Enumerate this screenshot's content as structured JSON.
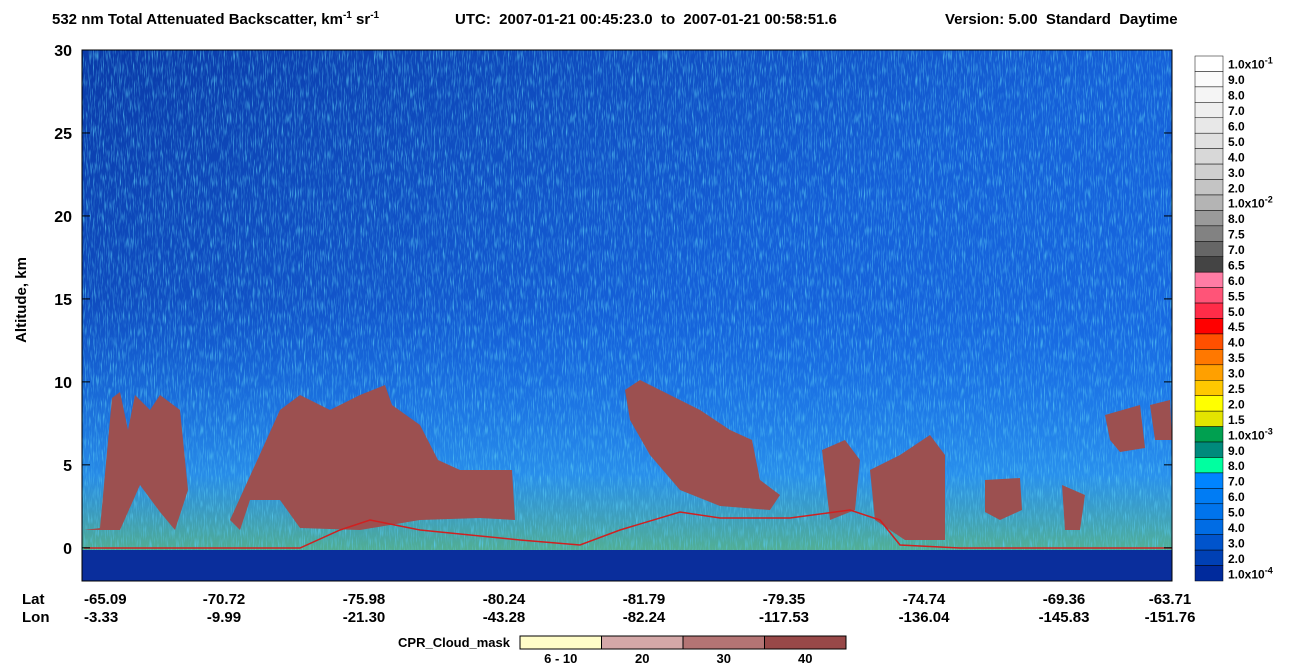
{
  "chart_data": {
    "type": "curtain",
    "title": {
      "text": "532 nm Total Attenuated Backscatter, km",
      "sup1": "-1",
      "text2": " sr",
      "sup2": "-1",
      "utc": "UTC:  2007-01-21 00:45:23.0  to  2007-01-21 00:58:51.6",
      "version": "Version: 5.00  Standard  Daytime"
    },
    "y_label": "Altitude, km",
    "ylim": [
      -2,
      30
    ],
    "yticks": [
      0,
      5,
      10,
      15,
      20,
      25,
      30
    ],
    "x_rows": [
      {
        "name": "Lat",
        "labels": [
          "-65.09",
          "-70.72",
          "-75.98",
          "-80.24",
          "-81.79",
          "-79.35",
          "-74.74",
          "-69.36",
          "-63.71"
        ]
      },
      {
        "name": "Lon",
        "labels": [
          "-3.33",
          "-9.99",
          "-21.30",
          "-43.28",
          "-82.24",
          "-117.53",
          "-136.04",
          "-145.83",
          "-151.76"
        ]
      }
    ],
    "colorbar": [
      {
        "label": "1.0x10",
        "sup": "-1",
        "color": "#ffffff"
      },
      {
        "label": "9.0",
        "color": "#fbfbfb"
      },
      {
        "label": "8.0",
        "color": "#f5f5f5"
      },
      {
        "label": "7.0",
        "color": "#efefef"
      },
      {
        "label": "6.0",
        "color": "#e8e8e8"
      },
      {
        "label": "5.0",
        "color": "#e0e0e0"
      },
      {
        "label": "4.0",
        "color": "#d8d8d8"
      },
      {
        "label": "3.0",
        "color": "#cfcfcf"
      },
      {
        "label": "2.0",
        "color": "#c4c4c4"
      },
      {
        "label": "1.0x10",
        "sup": "-2",
        "color": "#b4b4b4"
      },
      {
        "label": "8.0",
        "color": "#9a9a9a"
      },
      {
        "label": "7.5",
        "color": "#828282"
      },
      {
        "label": "7.0",
        "color": "#666666"
      },
      {
        "label": "6.5",
        "color": "#444444"
      },
      {
        "label": "6.0",
        "color": "#ff7ca4"
      },
      {
        "label": "5.5",
        "color": "#ff5478"
      },
      {
        "label": "5.0",
        "color": "#ff2c48"
      },
      {
        "label": "4.5",
        "color": "#ff0000"
      },
      {
        "label": "4.0",
        "color": "#ff5000"
      },
      {
        "label": "3.5",
        "color": "#ff7800"
      },
      {
        "label": "3.0",
        "color": "#ffa000"
      },
      {
        "label": "2.5",
        "color": "#ffc800"
      },
      {
        "label": "2.0",
        "color": "#ffff00"
      },
      {
        "label": "1.5",
        "color": "#e4e400"
      },
      {
        "label": "1.0x10",
        "sup": "-3",
        "color": "#00a050"
      },
      {
        "label": "9.0",
        "color": "#008a7c"
      },
      {
        "label": "8.0",
        "color": "#00ffa0"
      },
      {
        "label": "7.0",
        "color": "#0084ff"
      },
      {
        "label": "6.0",
        "color": "#007cf4"
      },
      {
        "label": "5.0",
        "color": "#0074ec"
      },
      {
        "label": "4.0",
        "color": "#006ce4"
      },
      {
        "label": "3.0",
        "color": "#0054cc"
      },
      {
        "label": "2.0",
        "color": "#0040b4"
      },
      {
        "label": "1.0x10",
        "sup": "-4",
        "color": "#002a9c"
      }
    ],
    "cloud_mask": {
      "title": "CPR_Cloud_mask",
      "categories": [
        "6 - 10",
        "20",
        "30",
        "40"
      ],
      "colors": [
        "#fffdc8",
        "#d4a8a8",
        "#b47474",
        "#984848"
      ]
    }
  }
}
